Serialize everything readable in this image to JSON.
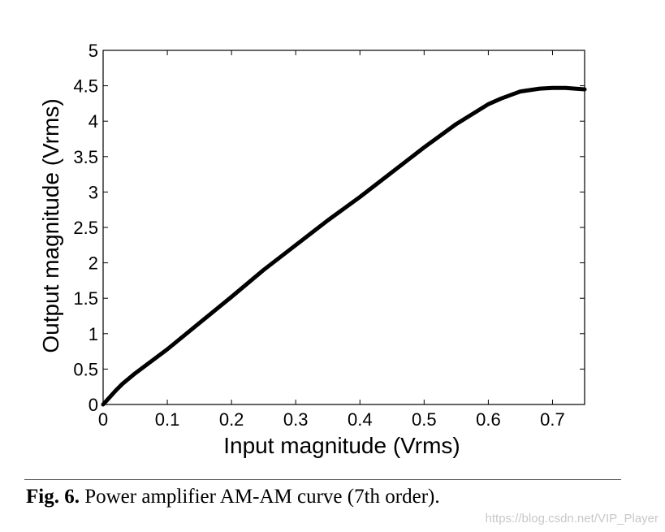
{
  "chart_data": {
    "type": "line",
    "xlabel": "Input magnitude (Vrms)",
    "ylabel": "Output magnitude (Vrms)",
    "xlim": [
      0,
      0.75
    ],
    "ylim": [
      0,
      5
    ],
    "xticks": [
      0,
      0.1,
      0.2,
      0.3,
      0.4,
      0.5,
      0.6,
      0.7
    ],
    "xtick_labels": [
      "0",
      "0.1",
      "0.2",
      "0.3",
      "0.4",
      "0.5",
      "0.6",
      "0.7"
    ],
    "yticks": [
      0,
      0.5,
      1,
      1.5,
      2,
      2.5,
      3,
      3.5,
      4,
      4.5,
      5
    ],
    "ytick_labels": [
      "0",
      "0.5",
      "1",
      "1.5",
      "2",
      "2.5",
      "3",
      "3.5",
      "4",
      "4.5",
      "5"
    ],
    "grid": false,
    "series": [
      {
        "name": "AM-AM",
        "color": "#000000",
        "x": [
          0,
          0.01,
          0.02,
          0.03,
          0.05,
          0.1,
          0.15,
          0.2,
          0.25,
          0.3,
          0.35,
          0.4,
          0.45,
          0.5,
          0.55,
          0.6,
          0.62,
          0.65,
          0.68,
          0.7,
          0.72,
          0.75
        ],
        "y": [
          0,
          0.1,
          0.2,
          0.29,
          0.44,
          0.78,
          1.15,
          1.52,
          1.9,
          2.25,
          2.6,
          2.93,
          3.28,
          3.63,
          3.96,
          4.24,
          4.32,
          4.42,
          4.46,
          4.47,
          4.47,
          4.45
        ]
      }
    ]
  },
  "caption": {
    "label": "Fig. 6.",
    "text": " Power amplifier AM-AM curve (7th order)."
  },
  "watermark": "https://blog.csdn.net/VIP_Player"
}
